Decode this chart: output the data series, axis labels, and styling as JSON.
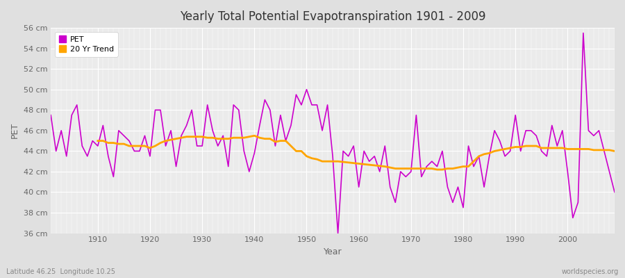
{
  "title": "Yearly Total Potential Evapotranspiration 1901 - 2009",
  "xlabel": "Year",
  "ylabel": "PET",
  "footnote_left": "Latitude 46.25  Longitude 10.25",
  "footnote_right": "worldspecies.org",
  "ylim": [
    36,
    56
  ],
  "yticks": [
    36,
    38,
    40,
    42,
    44,
    46,
    48,
    50,
    52,
    54,
    56
  ],
  "pet_color": "#cc00cc",
  "trend_color": "#ffa500",
  "fig_bg_color": "#e0e0e0",
  "plot_bg_color": "#ebebeb",
  "legend_labels": [
    "PET",
    "20 Yr Trend"
  ],
  "years": [
    1901,
    1902,
    1903,
    1904,
    1905,
    1906,
    1907,
    1908,
    1909,
    1910,
    1911,
    1912,
    1913,
    1914,
    1915,
    1916,
    1917,
    1918,
    1919,
    1920,
    1921,
    1922,
    1923,
    1924,
    1925,
    1926,
    1927,
    1928,
    1929,
    1930,
    1931,
    1932,
    1933,
    1934,
    1935,
    1936,
    1937,
    1938,
    1939,
    1940,
    1941,
    1942,
    1943,
    1944,
    1945,
    1946,
    1947,
    1948,
    1949,
    1950,
    1951,
    1952,
    1953,
    1954,
    1955,
    1956,
    1957,
    1958,
    1959,
    1960,
    1961,
    1962,
    1963,
    1964,
    1965,
    1966,
    1967,
    1968,
    1969,
    1970,
    1971,
    1972,
    1973,
    1974,
    1975,
    1976,
    1977,
    1978,
    1979,
    1980,
    1981,
    1982,
    1983,
    1984,
    1985,
    1986,
    1987,
    1988,
    1989,
    1990,
    1991,
    1992,
    1993,
    1994,
    1995,
    1996,
    1997,
    1998,
    1999,
    2000,
    2001,
    2002,
    2003,
    2004,
    2005,
    2006,
    2007,
    2008,
    2009
  ],
  "pet_values": [
    47.5,
    44.0,
    46.0,
    43.5,
    47.5,
    48.5,
    44.5,
    43.5,
    45.0,
    44.5,
    46.5,
    43.5,
    41.5,
    46.0,
    45.5,
    45.0,
    44.0,
    44.0,
    45.5,
    43.5,
    48.0,
    48.0,
    44.5,
    46.0,
    42.5,
    45.5,
    46.5,
    48.0,
    44.5,
    44.5,
    48.5,
    46.0,
    44.5,
    45.5,
    42.5,
    48.5,
    48.0,
    44.0,
    42.0,
    43.8,
    46.5,
    49.0,
    48.0,
    44.5,
    47.5,
    45.0,
    46.5,
    49.5,
    48.5,
    50.0,
    48.5,
    48.5,
    46.0,
    48.5,
    43.5,
    36.0,
    44.0,
    43.5,
    44.5,
    40.5,
    44.0,
    43.0,
    43.5,
    42.0,
    44.5,
    40.5,
    39.0,
    42.0,
    41.5,
    42.0,
    47.5,
    41.5,
    42.5,
    43.0,
    42.5,
    44.0,
    40.5,
    39.0,
    40.5,
    38.5,
    44.5,
    42.5,
    43.5,
    40.5,
    43.5,
    46.0,
    45.0,
    43.5,
    44.0,
    47.5,
    44.0,
    46.0,
    46.0,
    45.5,
    44.0,
    43.5,
    46.5,
    44.5,
    46.0,
    42.0,
    37.5,
    39.0,
    55.5,
    46.0,
    45.5,
    46.0,
    44.0,
    42.0,
    40.0
  ],
  "trend_years": [
    1910,
    1911,
    1912,
    1913,
    1914,
    1915,
    1916,
    1917,
    1918,
    1919,
    1920,
    1921,
    1922,
    1923,
    1924,
    1925,
    1926,
    1927,
    1928,
    1929,
    1930,
    1931,
    1932,
    1933,
    1934,
    1935,
    1936,
    1937,
    1938,
    1939,
    1940,
    1941,
    1942,
    1943,
    1944,
    1945,
    1946,
    1947,
    1948,
    1949,
    1950,
    1951,
    1952,
    1953,
    1954,
    1955,
    1956,
    1965,
    1966,
    1967,
    1968,
    1969,
    1970,
    1971,
    1972,
    1973,
    1974,
    1975,
    1976,
    1977,
    1978,
    1979,
    1980,
    1981,
    1982,
    1983,
    1984,
    1985,
    1986,
    1987,
    1988,
    1989,
    1990,
    1991,
    1992,
    1993,
    1994,
    1995,
    1996,
    1997,
    1998,
    1999,
    2000,
    2001,
    2002,
    2003,
    2004,
    2005,
    2006,
    2007,
    2008,
    2009
  ],
  "trend_values": [
    45.0,
    45.0,
    44.8,
    44.8,
    44.7,
    44.7,
    44.5,
    44.5,
    44.5,
    44.5,
    44.3,
    44.5,
    44.8,
    45.0,
    45.1,
    45.2,
    45.3,
    45.4,
    45.4,
    45.4,
    45.4,
    45.3,
    45.3,
    45.2,
    45.2,
    45.2,
    45.3,
    45.3,
    45.3,
    45.4,
    45.5,
    45.3,
    45.2,
    45.2,
    44.9,
    45.0,
    45.0,
    44.5,
    44.0,
    44.0,
    43.5,
    43.3,
    43.2,
    43.0,
    43.0,
    43.0,
    43.0,
    42.5,
    42.4,
    42.3,
    42.3,
    42.3,
    42.3,
    42.3,
    42.3,
    42.3,
    42.3,
    42.2,
    42.2,
    42.3,
    42.3,
    42.4,
    42.5,
    42.5,
    43.0,
    43.5,
    43.7,
    43.8,
    44.0,
    44.1,
    44.2,
    44.3,
    44.4,
    44.4,
    44.5,
    44.5,
    44.5,
    44.3,
    44.3,
    44.3,
    44.3,
    44.3,
    44.2,
    44.2,
    44.2,
    44.2,
    44.2,
    44.1,
    44.1,
    44.1,
    44.1,
    44.0
  ]
}
